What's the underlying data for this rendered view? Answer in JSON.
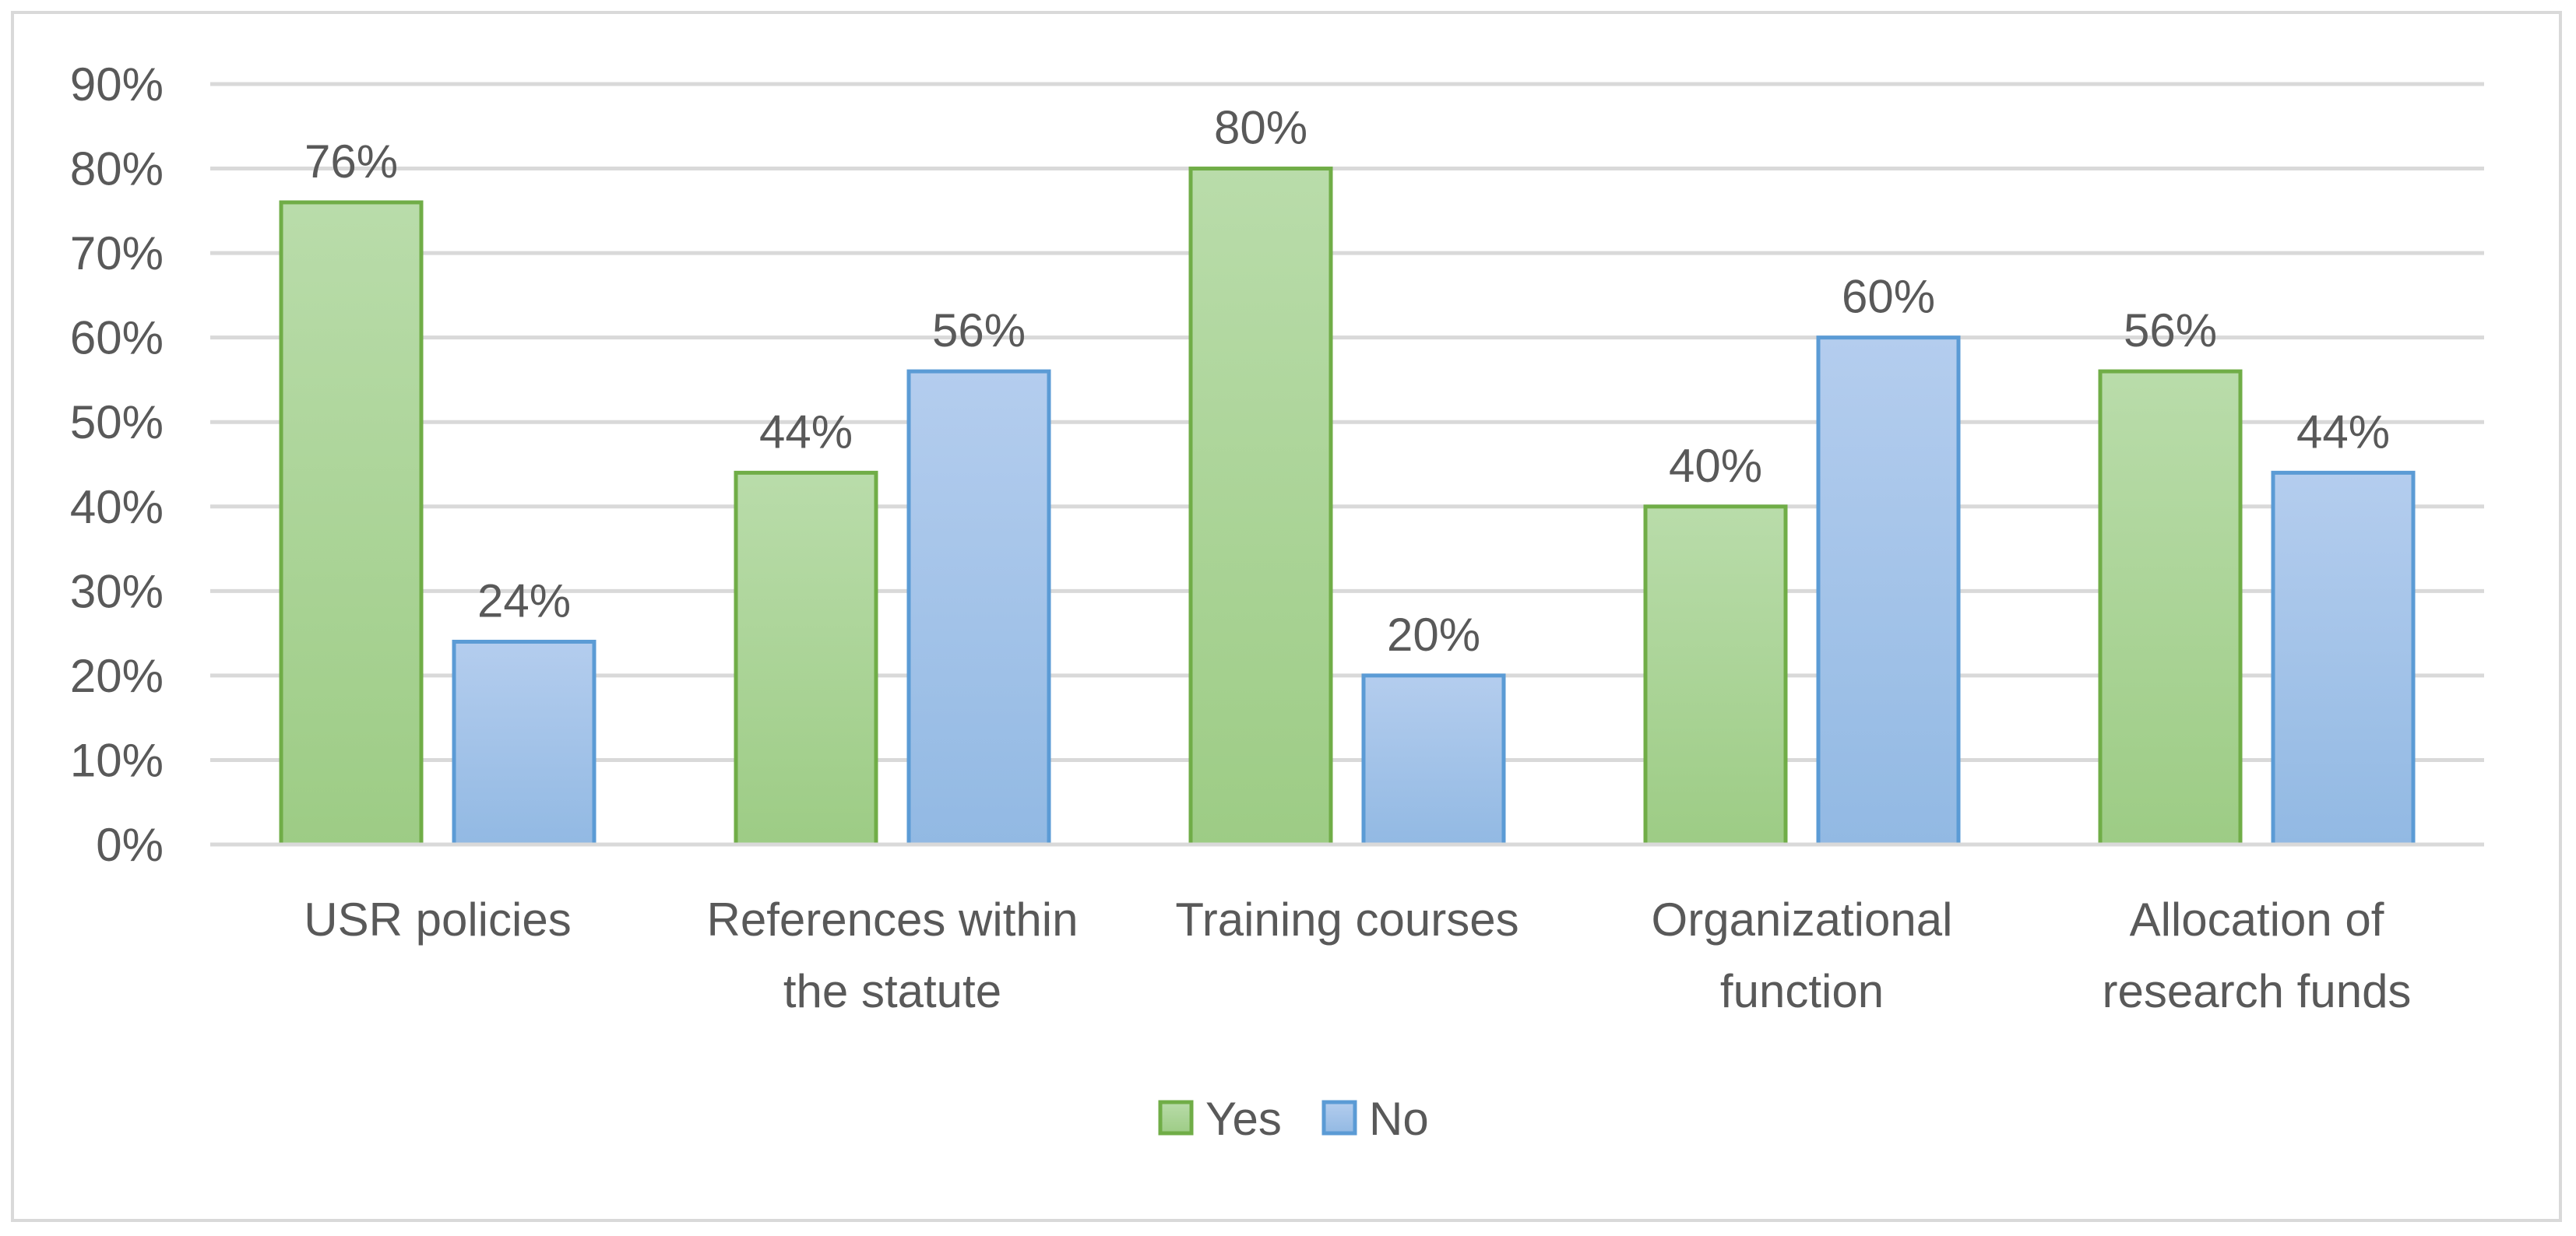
{
  "chart_data": {
    "type": "bar",
    "categories": [
      [
        "USR policies"
      ],
      [
        "References within",
        "the statute"
      ],
      [
        "Training courses"
      ],
      [
        "Organizational",
        "function"
      ],
      [
        "Allocation of",
        "research funds"
      ]
    ],
    "series": [
      {
        "name": "Yes",
        "values": [
          76,
          44,
          80,
          40,
          56
        ],
        "color": "#9dcc85",
        "color_light": "#b9dcaa",
        "border": "#70ad47"
      },
      {
        "name": "No",
        "values": [
          24,
          56,
          20,
          60,
          44
        ],
        "color": "#92b9e3",
        "color_light": "#b4cdee",
        "border": "#5b9bd5"
      }
    ],
    "data_labels": [
      [
        "76%",
        "44%",
        "80%",
        "40%",
        "56%"
      ],
      [
        "24%",
        "56%",
        "20%",
        "60%",
        "44%"
      ]
    ],
    "ylim": [
      0,
      90
    ],
    "yticks": [
      0,
      10,
      20,
      30,
      40,
      50,
      60,
      70,
      80,
      90
    ],
    "ytick_labels": [
      "0%",
      "10%",
      "20%",
      "30%",
      "40%",
      "50%",
      "60%",
      "70%",
      "80%",
      "90%"
    ],
    "grid": true,
    "legend_position": "bottom",
    "title": "",
    "xlabel": "",
    "ylabel": "",
    "colors": {
      "grid": "#d9d9d9",
      "text": "#595959",
      "frame": "#d9d9d9"
    }
  }
}
